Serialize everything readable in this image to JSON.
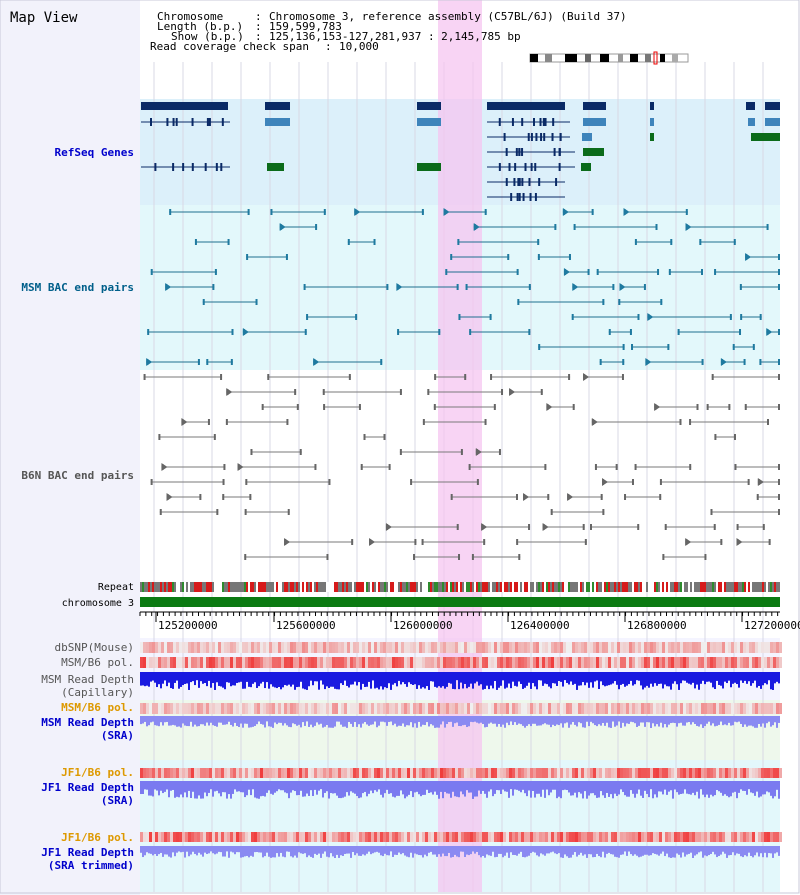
{
  "title": "Map View",
  "info": {
    "chromosome_key": "Chromosome",
    "chromosome_val": "Chromosome 3, reference assembly (C57BL/6J) (Build 37)",
    "length_key": "Length (b.p.)",
    "length_val": "159,599,783",
    "show_key": "Show (b.p.)",
    "show_val": "125,136,153-127,281,937 : 2,145,785 bp",
    "coverage_key": "Read coverage check span",
    "coverage_val": "10,000"
  },
  "tracks": {
    "refseq": "RefSeq Genes",
    "msm_bac": "MSM BAC end pairs",
    "b6n_bac": "B6N BAC end pairs",
    "repeat": "Repeat",
    "chromosome": "chromosome 3",
    "dbsnp": "dbSNP(Mouse)",
    "msm_b6_pol": "MSM/B6 pol.",
    "msm_depth_cap_1": "MSM Read Depth",
    "msm_depth_cap_2": "(Capillary)",
    "msm_b6_pol_2": "MSM/B6 pol.",
    "msm_depth_sra_1": "MSM Read Depth",
    "msm_depth_sra_2": "(SRA)",
    "jf1_b6_pol": "JF1/B6 pol.",
    "jf1_depth_sra_1": "JF1 Read Depth",
    "jf1_depth_sra_2": "(SRA)",
    "jf1_b6_pol_2": "JF1/B6 pol.",
    "jf1_depth_trim_1": "JF1 Read Depth",
    "jf1_depth_trim_2": "(SRA trimmed)"
  },
  "axis_ticks": [
    "125200000",
    "125600000",
    "126000000",
    "126400000",
    "126800000",
    "127200000"
  ],
  "colors": {
    "refseq_label": "#0000cc",
    "msm_label": "#005f8a",
    "b6n_label": "#555555",
    "msm_depth_label": "#0000cc",
    "jf1_pol_label": "#dd9900",
    "msm_pol2_label": "#dd9900",
    "highlight": "#f5c6f0"
  }
}
